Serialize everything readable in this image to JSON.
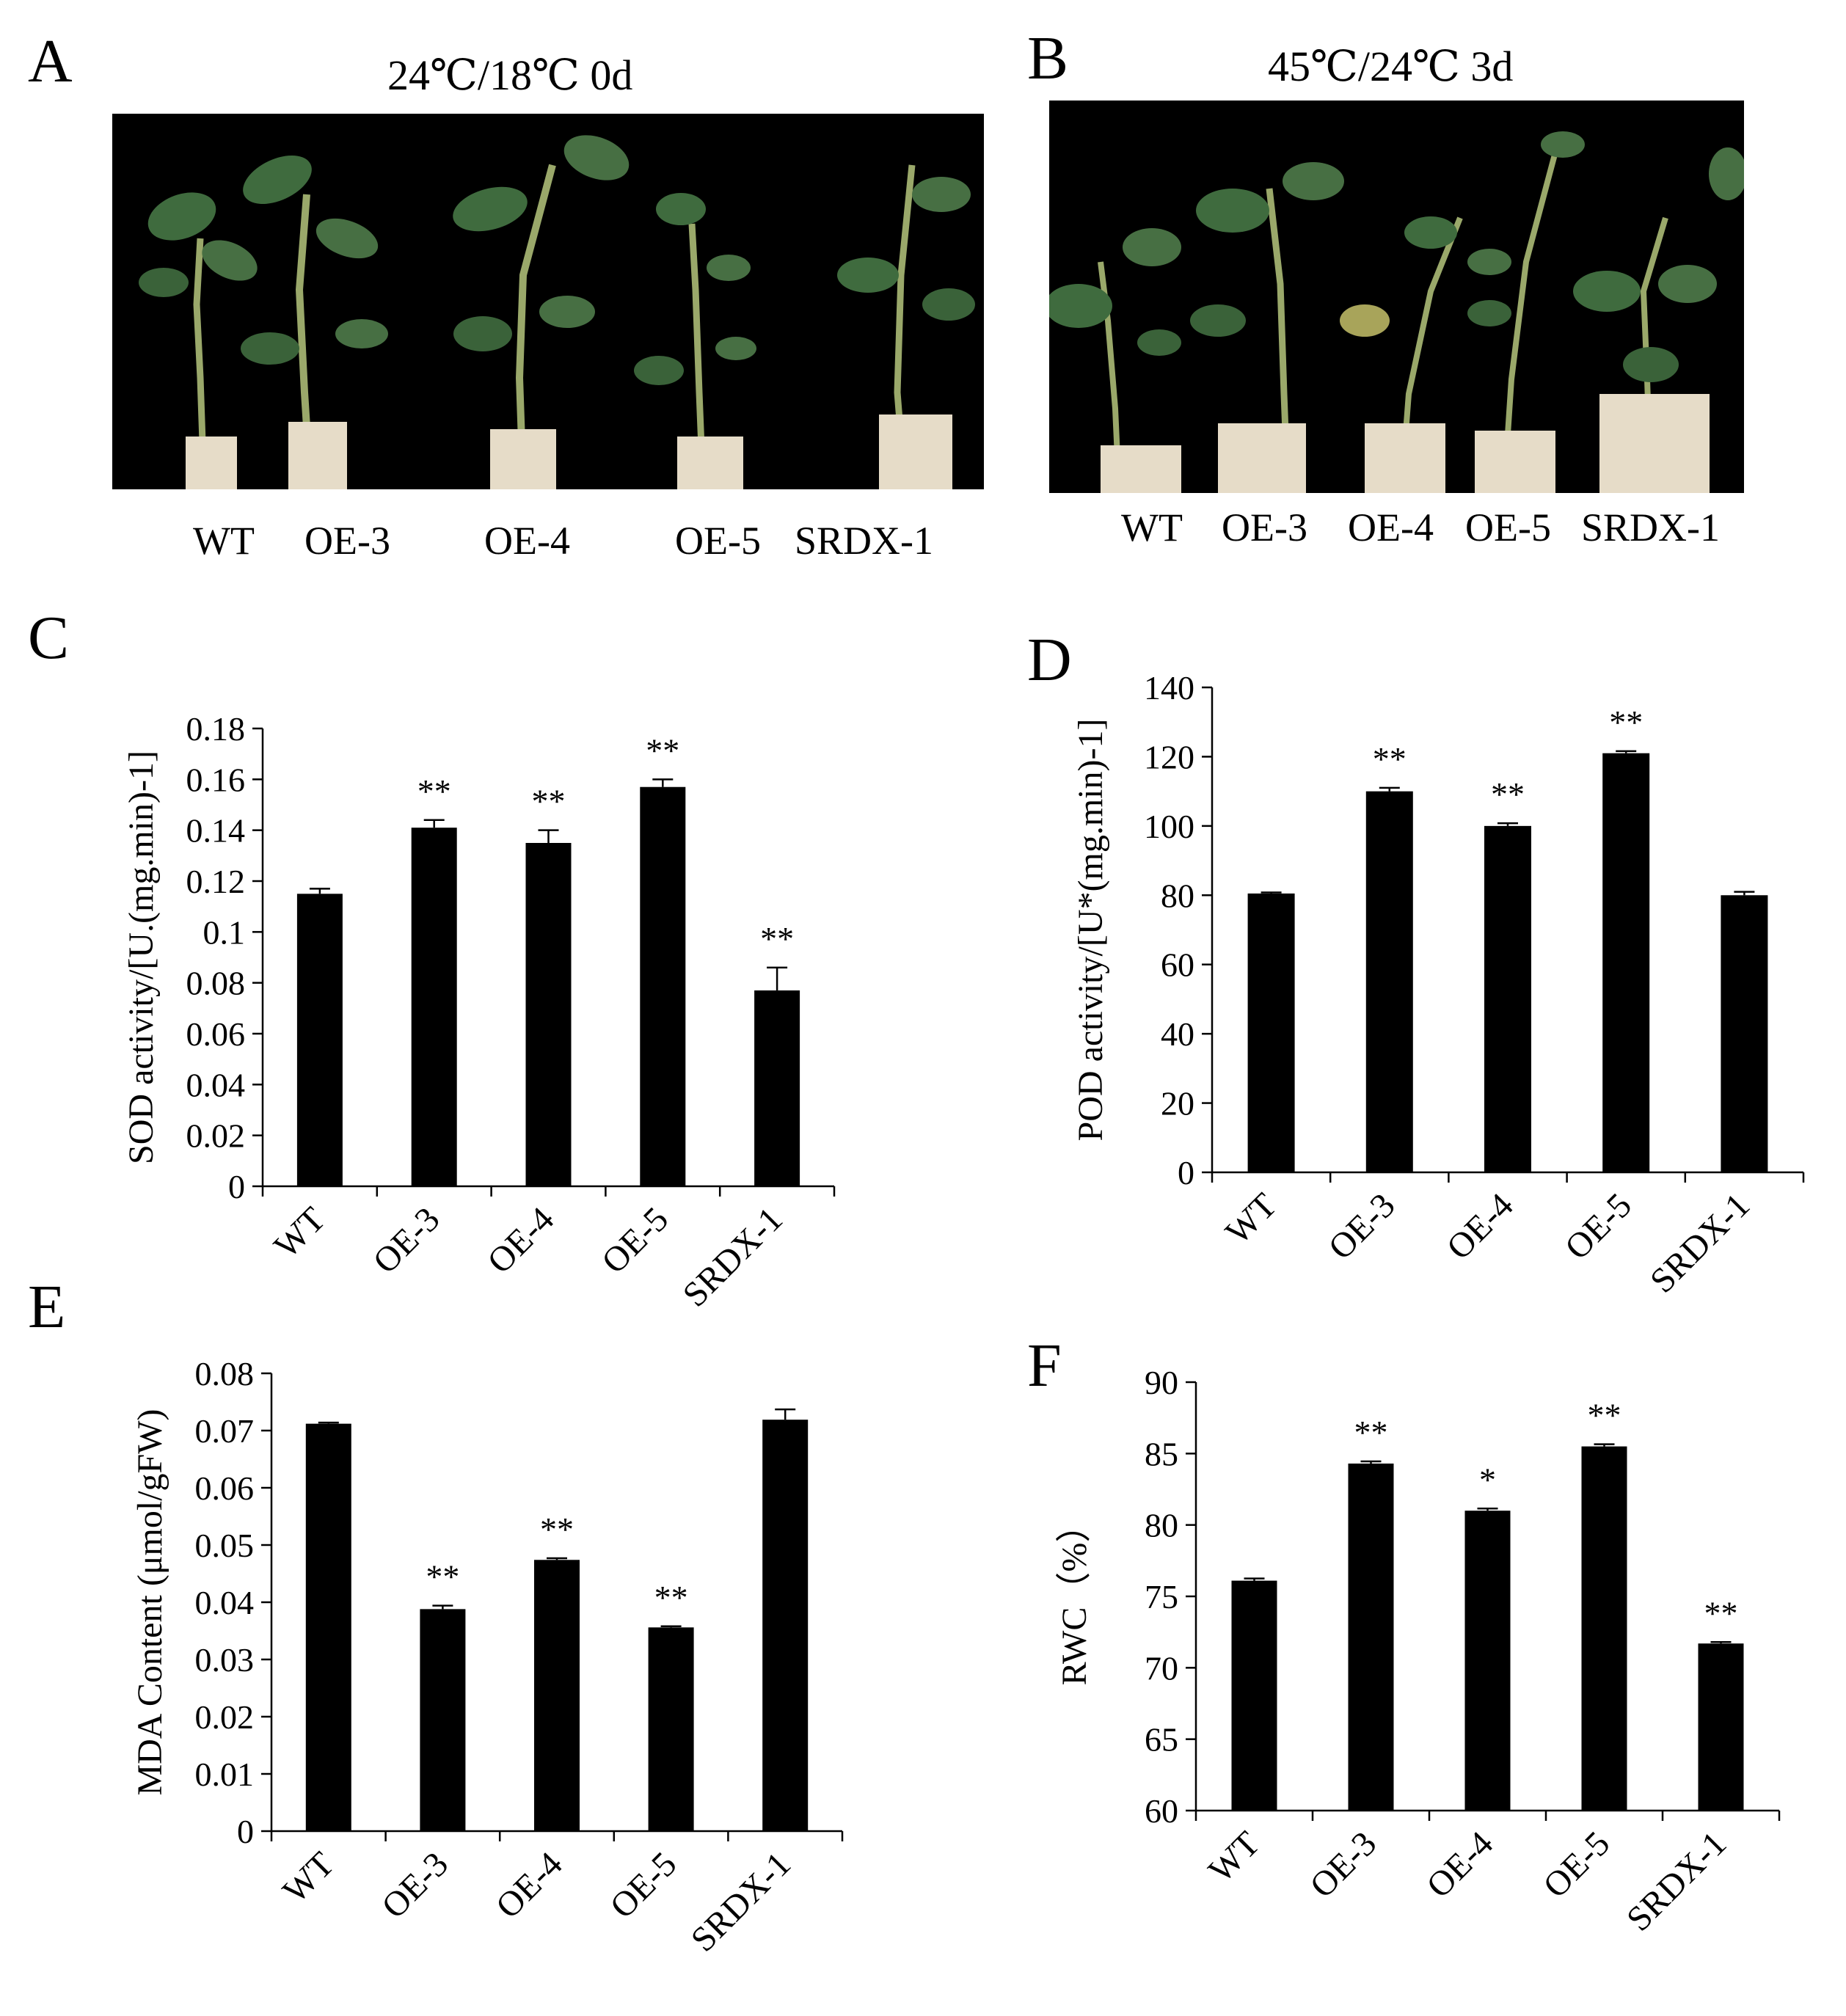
{
  "panels": {
    "A": {
      "letter": "A",
      "caption": "24℃/18℃  0d",
      "plant_labels": [
        "WT",
        "OE-3",
        "OE-4",
        "OE-5",
        "SRDX-1"
      ]
    },
    "B": {
      "letter": "B",
      "caption": "45℃/24℃  3d",
      "plant_labels": [
        "WT",
        "OE-3",
        "OE-4",
        "OE-5",
        "SRDX-1"
      ]
    },
    "C": {
      "letter": "C"
    },
    "D": {
      "letter": "D"
    },
    "E": {
      "letter": "E"
    },
    "F": {
      "letter": "F"
    }
  },
  "colors": {
    "bar": "#000000",
    "photo_background": "#000000",
    "leaf": "#3f6b3e",
    "stem": "#9aa86a",
    "pot": "#e6dcc8"
  },
  "chart_data": [
    {
      "panel": "C",
      "type": "bar",
      "categories": [
        "WT",
        "OE-3",
        "OE-4",
        "OE-5",
        "SRDX-1"
      ],
      "values": [
        0.115,
        0.141,
        0.135,
        0.157,
        0.077
      ],
      "errors": [
        0.002,
        0.003,
        0.005,
        0.003,
        0.009
      ],
      "significance": [
        "",
        "**",
        "**",
        "**",
        "**"
      ],
      "ylabel": "SOD activity/[U.(mg.min)-1]",
      "ylim": [
        0,
        0.18
      ],
      "yticks": [
        0,
        0.02,
        0.04,
        0.06,
        0.08,
        0.1,
        0.12,
        0.14,
        0.16,
        0.18
      ],
      "ytick_labels": [
        "0",
        "0.02",
        "0.04",
        "0.06",
        "0.08",
        "0.1",
        "0.12",
        "0.14",
        "0.16",
        "0.18"
      ],
      "grid": false,
      "legend": "none"
    },
    {
      "panel": "D",
      "type": "bar",
      "categories": [
        "WT",
        "OE-3",
        "OE-4",
        "OE-5",
        "SRDX-1"
      ],
      "values": [
        80.5,
        110,
        100,
        121,
        80
      ],
      "errors": [
        0.3,
        1.0,
        0.8,
        0.6,
        1.0
      ],
      "significance": [
        "",
        "**",
        "**",
        "**",
        ""
      ],
      "ylabel": "POD activity/[U*(mg.min)-1]",
      "ylim": [
        0,
        140
      ],
      "yticks": [
        0,
        20,
        40,
        60,
        80,
        100,
        120,
        140
      ],
      "ytick_labels": [
        "0",
        "20",
        "40",
        "60",
        "80",
        "100",
        "120",
        "140"
      ],
      "grid": false,
      "legend": "none"
    },
    {
      "panel": "E",
      "type": "bar",
      "categories": [
        "WT",
        "OE-3",
        "OE-4",
        "OE-5",
        "SRDX-1"
      ],
      "values": [
        0.0712,
        0.0388,
        0.0474,
        0.0356,
        0.0719
      ],
      "errors": [
        0.0002,
        0.0006,
        0.0003,
        0.0002,
        0.0018
      ],
      "significance": [
        "",
        "**",
        "**",
        "**",
        ""
      ],
      "ylabel": "MDA Content (μmol/gFW)",
      "ylim": [
        0,
        0.08
      ],
      "yticks": [
        0,
        0.01,
        0.02,
        0.03,
        0.04,
        0.05,
        0.06,
        0.07,
        0.08
      ],
      "ytick_labels": [
        "0",
        "0.01",
        "0.02",
        "0.03",
        "0.04",
        "0.05",
        "0.06",
        "0.07",
        "0.08"
      ],
      "grid": false,
      "legend": "none"
    },
    {
      "panel": "F",
      "type": "bar",
      "categories": [
        "WT",
        "OE-3",
        "OE-4",
        "OE-5",
        "SRDX-1"
      ],
      "values": [
        76.1,
        84.3,
        81.0,
        85.5,
        71.7
      ],
      "errors": [
        0.15,
        0.15,
        0.15,
        0.15,
        0.1
      ],
      "significance": [
        "",
        "**",
        "*",
        "**",
        "**"
      ],
      "ylabel": "RWC（%）",
      "ylim": [
        60,
        90
      ],
      "yticks": [
        60,
        65,
        70,
        75,
        80,
        85,
        90
      ],
      "ytick_labels": [
        "60",
        "65",
        "70",
        "75",
        "80",
        "85",
        "90"
      ],
      "grid": false,
      "legend": "none"
    }
  ]
}
